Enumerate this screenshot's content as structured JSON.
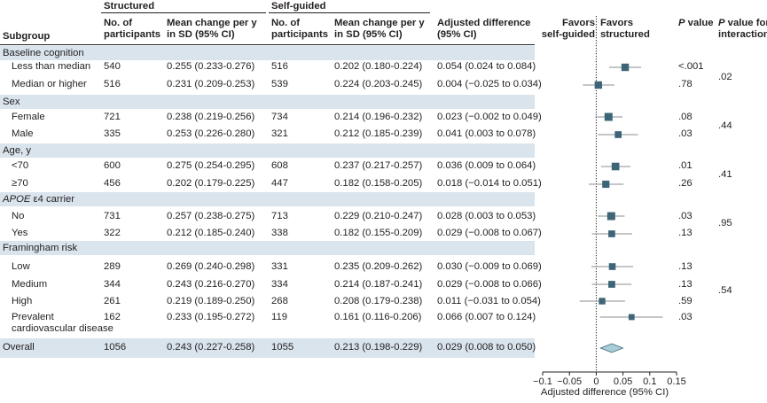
{
  "header": {
    "structured": "Structured",
    "self_guided": "Self-guided",
    "subgroup": "Subgroup",
    "n_participants_1": "No. of",
    "n_participants_2": "participants",
    "mean_change_1": "Mean change per y",
    "mean_change_2": "in SD (95% CI)",
    "adj_diff_1": "Adjusted difference",
    "adj_diff_2": "(95% CI)",
    "favors_left_1": "Favors",
    "favors_left_2": "self-guided",
    "favors_right_1": "Favors",
    "favors_right_2": "structured",
    "p_value_p": "P",
    "p_value_rest": " value",
    "p_inter_p": "P",
    "p_inter_rest": " value for",
    "p_inter_2": "interaction"
  },
  "groups": [
    {
      "label": "Baseline cognition",
      "p_interaction": ".02"
    },
    {
      "label": "Sex",
      "p_interaction": ".44"
    },
    {
      "label": "Age, y",
      "p_interaction": ".41"
    },
    {
      "label_italic": "APOE",
      "label_rest": " ε4 carrier",
      "p_interaction": ".95"
    },
    {
      "label": "Framingham risk",
      "p_interaction": ".54"
    }
  ],
  "rows": [
    {
      "label": "Less than median",
      "s_n": "540",
      "s_mean": "0.255 (0.233-0.276)",
      "g_n": "516",
      "g_mean": "0.202 (0.180-0.224)",
      "adj": "0.054 (0.024 to 0.084)",
      "p": "<.001"
    },
    {
      "label": "Median or higher",
      "s_n": "516",
      "s_mean": "0.231 (0.209-0.253)",
      "g_n": "539",
      "g_mean": "0.224 (0.203-0.245)",
      "adj": "0.004 (−0.025 to 0.034)",
      "p": ".78"
    },
    {
      "label": "Female",
      "s_n": "721",
      "s_mean": "0.238 (0.219-0.256)",
      "g_n": "734",
      "g_mean": "0.214 (0.196-0.232)",
      "adj": "0.023 (−0.002 to 0.049)",
      "p": ".08"
    },
    {
      "label": "Male",
      "s_n": "335",
      "s_mean": "0.253 (0.226-0.280)",
      "g_n": "321",
      "g_mean": "0.212 (0.185-0.239)",
      "adj": "0.041 (0.003 to 0.078)",
      "p": ".03"
    },
    {
      "label": "<70",
      "s_n": "600",
      "s_mean": "0.275 (0.254-0.295)",
      "g_n": "608",
      "g_mean": "0.237 (0.217-0.257)",
      "adj": "0.036 (0.009 to 0.064)",
      "p": ".01"
    },
    {
      "label": "≥70",
      "s_n": "456",
      "s_mean": "0.202 (0.179-0.225)",
      "g_n": "447",
      "g_mean": "0.182 (0.158-0.205)",
      "adj": "0.018 (−0.014 to 0.051)",
      "p": ".26"
    },
    {
      "label": "No",
      "s_n": "731",
      "s_mean": "0.257 (0.238-0.275)",
      "g_n": "713",
      "g_mean": "0.229 (0.210-0.247)",
      "adj": "0.028 (0.003 to 0.053)",
      "p": ".03"
    },
    {
      "label": "Yes",
      "s_n": "322",
      "s_mean": "0.212 (0.185-0.240)",
      "g_n": "338",
      "g_mean": "0.182 (0.155-0.209)",
      "adj": "0.029 (−0.008 to 0.067)",
      "p": ".13"
    },
    {
      "label": "Low",
      "s_n": "289",
      "s_mean": "0.269 (0.240-0.298)",
      "g_n": "331",
      "g_mean": "0.235 (0.209-0.262)",
      "adj": "0.030 (−0.009 to 0.069)",
      "p": ".13"
    },
    {
      "label": "Medium",
      "s_n": "344",
      "s_mean": "0.243 (0.216-0.270)",
      "g_n": "334",
      "g_mean": "0.214 (0.187-0.241)",
      "adj": "0.029 (−0.008 to 0.066)",
      "p": ".13"
    },
    {
      "label": "High",
      "s_n": "261",
      "s_mean": "0.219 (0.189-0.250)",
      "g_n": "268",
      "g_mean": "0.208 (0.179-0.238)",
      "adj": "0.011 (−0.031 to 0.054)",
      "p": ".59"
    },
    {
      "label_1": "Prevalent",
      "label_2": "cardiovascular disease",
      "s_n": "162",
      "s_mean": "0.233 (0.195-0.272)",
      "g_n": "119",
      "g_mean": "0.161 (0.116-0.206)",
      "adj": "0.066 (0.007 to 0.124)",
      "p": ".03"
    },
    {
      "label": "Overall",
      "s_n": "1056",
      "s_mean": "0.243 (0.227-0.258)",
      "g_n": "1055",
      "g_mean": "0.213 (0.198-0.229)",
      "adj": "0.029 (0.008 to 0.050)",
      "p": ""
    }
  ],
  "chart_data": {
    "type": "forest",
    "xlabel": "Adjusted difference (95% CI)",
    "xlim": [
      -0.1,
      0.15
    ],
    "xticks": [
      "−0.1",
      "−0.05",
      "0",
      "0.05",
      "0.1",
      "0.15"
    ],
    "xtick_values": [
      -0.1,
      -0.05,
      0,
      0.05,
      0.1,
      0.15
    ],
    "reference_line": 0,
    "marker_color": "#3d6577",
    "whisker_color": "#8a8d8f",
    "diamond_color": "#a9cdd8",
    "band_color": "#d9e4ec",
    "points": [
      {
        "label": "Less than median",
        "est": 0.054,
        "lo": 0.024,
        "hi": 0.084,
        "n": 1056
      },
      {
        "label": "Median or higher",
        "est": 0.004,
        "lo": -0.025,
        "hi": 0.034,
        "n": 1055
      },
      {
        "label": "Female",
        "est": 0.023,
        "lo": -0.002,
        "hi": 0.049,
        "n": 1455
      },
      {
        "label": "Male",
        "est": 0.041,
        "lo": 0.003,
        "hi": 0.078,
        "n": 656
      },
      {
        "label": "<70",
        "est": 0.036,
        "lo": 0.009,
        "hi": 0.064,
        "n": 1208
      },
      {
        "label": "≥70",
        "est": 0.018,
        "lo": -0.014,
        "hi": 0.051,
        "n": 903
      },
      {
        "label": "No",
        "est": 0.028,
        "lo": 0.003,
        "hi": 0.053,
        "n": 1444
      },
      {
        "label": "Yes",
        "est": 0.029,
        "lo": -0.008,
        "hi": 0.067,
        "n": 660
      },
      {
        "label": "Low",
        "est": 0.03,
        "lo": -0.009,
        "hi": 0.069,
        "n": 620
      },
      {
        "label": "Medium",
        "est": 0.029,
        "lo": -0.008,
        "hi": 0.066,
        "n": 678
      },
      {
        "label": "High",
        "est": 0.011,
        "lo": -0.031,
        "hi": 0.054,
        "n": 529
      },
      {
        "label": "Prevalent cardiovascular disease",
        "est": 0.066,
        "lo": 0.007,
        "hi": 0.124,
        "n": 281
      }
    ],
    "overall": {
      "label": "Overall",
      "est": 0.029,
      "lo": 0.008,
      "hi": 0.05
    }
  }
}
